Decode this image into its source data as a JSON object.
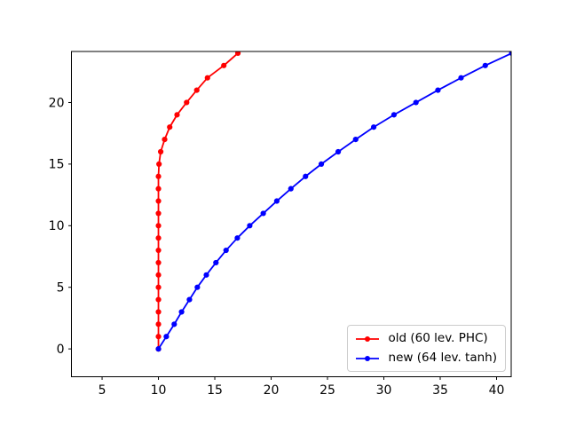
{
  "figure": {
    "background": "#ffffff",
    "spine_color": "#000000",
    "tick_label_color": "#000000",
    "legend_border_color": "#cccccc"
  },
  "chart_data": {
    "type": "line",
    "title": "",
    "xlabel": "",
    "ylabel": "",
    "grid": false,
    "legend_position": "lower right",
    "xlim": [
      2.28,
      41.3
    ],
    "ylim": [
      -2.26,
      24.14
    ],
    "xticks": [
      5,
      10,
      15,
      20,
      25,
      30,
      35,
      40
    ],
    "yticks": [
      0,
      5,
      10,
      15,
      20
    ],
    "marker": "dot",
    "series": [
      {
        "name": "old (60 lev. PHC)",
        "color": "#ff0000",
        "x": [
          10.0,
          10.0,
          10.0,
          10.0,
          10.0,
          10.0,
          10.0,
          10.0,
          10.0,
          10.0,
          10.0,
          10.0,
          10.0,
          10.0,
          10.0,
          10.05,
          10.2,
          10.55,
          11.0,
          11.65,
          12.5,
          13.4,
          14.35,
          15.8,
          17.05
        ],
        "y": [
          0,
          1,
          2,
          3,
          4,
          5,
          6,
          7,
          8,
          9,
          10,
          11,
          12,
          13,
          14,
          15,
          16,
          17,
          18,
          19,
          20,
          21,
          22,
          23,
          24
        ]
      },
      {
        "name": "new (64 lev. tanh)",
        "color": "#0000ff",
        "x": [
          10.0,
          10.7,
          11.4,
          12.05,
          12.75,
          13.45,
          14.25,
          15.1,
          16.0,
          17.0,
          18.1,
          19.3,
          20.5,
          21.75,
          23.05,
          24.45,
          25.95,
          27.5,
          29.1,
          30.9,
          32.85,
          34.8,
          36.85,
          39.0,
          41.35
        ],
        "y": [
          0,
          1,
          2,
          3,
          4,
          5,
          6,
          7,
          8,
          9,
          10,
          11,
          12,
          13,
          14,
          15,
          16,
          17,
          18,
          19,
          20,
          21,
          22,
          23,
          24
        ]
      }
    ]
  }
}
